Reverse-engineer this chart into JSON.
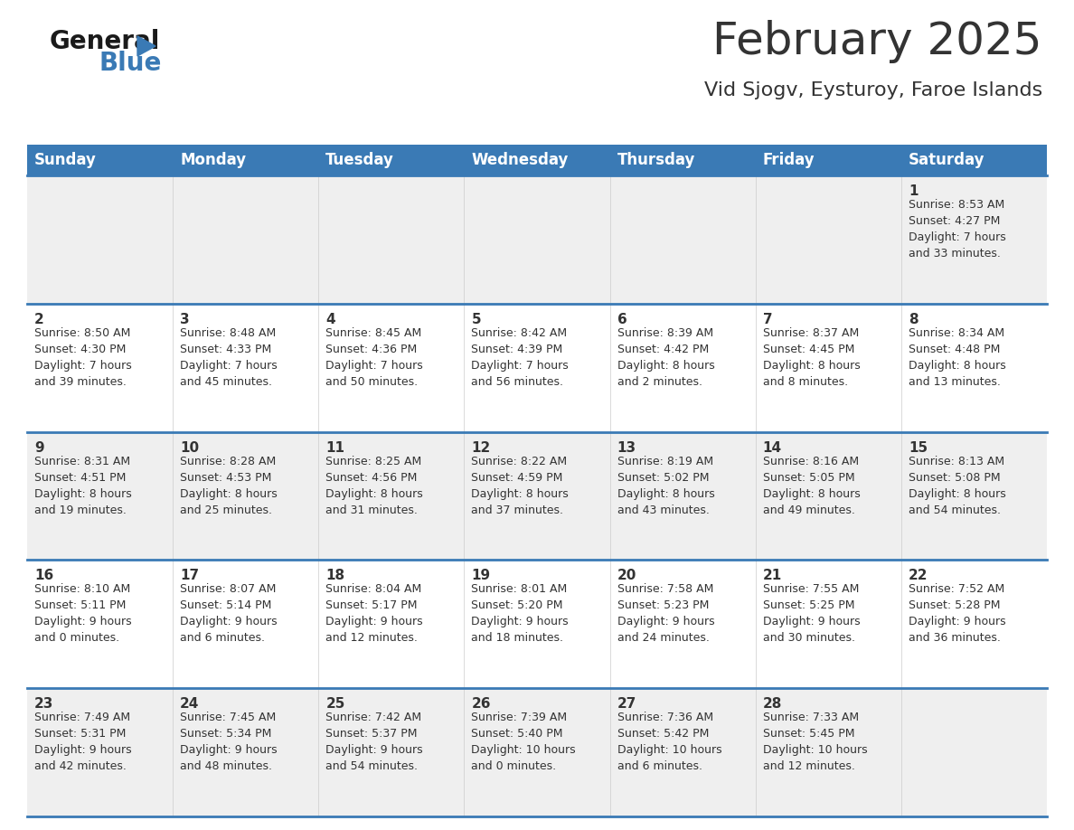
{
  "title": "February 2025",
  "subtitle": "Vid Sjogv, Eysturoy, Faroe Islands",
  "header_color": "#3a7ab5",
  "header_text_color": "#ffffff",
  "days_of_week": [
    "Sunday",
    "Monday",
    "Tuesday",
    "Wednesday",
    "Thursday",
    "Friday",
    "Saturday"
  ],
  "bg_color": "#ffffff",
  "cell_bg_even": "#efefef",
  "cell_bg_odd": "#ffffff",
  "border_color": "#3a7ab5",
  "text_color": "#333333",
  "calendar_data": [
    [
      {
        "day": null,
        "info": null
      },
      {
        "day": null,
        "info": null
      },
      {
        "day": null,
        "info": null
      },
      {
        "day": null,
        "info": null
      },
      {
        "day": null,
        "info": null
      },
      {
        "day": null,
        "info": null
      },
      {
        "day": 1,
        "info": "Sunrise: 8:53 AM\nSunset: 4:27 PM\nDaylight: 7 hours\nand 33 minutes."
      }
    ],
    [
      {
        "day": 2,
        "info": "Sunrise: 8:50 AM\nSunset: 4:30 PM\nDaylight: 7 hours\nand 39 minutes."
      },
      {
        "day": 3,
        "info": "Sunrise: 8:48 AM\nSunset: 4:33 PM\nDaylight: 7 hours\nand 45 minutes."
      },
      {
        "day": 4,
        "info": "Sunrise: 8:45 AM\nSunset: 4:36 PM\nDaylight: 7 hours\nand 50 minutes."
      },
      {
        "day": 5,
        "info": "Sunrise: 8:42 AM\nSunset: 4:39 PM\nDaylight: 7 hours\nand 56 minutes."
      },
      {
        "day": 6,
        "info": "Sunrise: 8:39 AM\nSunset: 4:42 PM\nDaylight: 8 hours\nand 2 minutes."
      },
      {
        "day": 7,
        "info": "Sunrise: 8:37 AM\nSunset: 4:45 PM\nDaylight: 8 hours\nand 8 minutes."
      },
      {
        "day": 8,
        "info": "Sunrise: 8:34 AM\nSunset: 4:48 PM\nDaylight: 8 hours\nand 13 minutes."
      }
    ],
    [
      {
        "day": 9,
        "info": "Sunrise: 8:31 AM\nSunset: 4:51 PM\nDaylight: 8 hours\nand 19 minutes."
      },
      {
        "day": 10,
        "info": "Sunrise: 8:28 AM\nSunset: 4:53 PM\nDaylight: 8 hours\nand 25 minutes."
      },
      {
        "day": 11,
        "info": "Sunrise: 8:25 AM\nSunset: 4:56 PM\nDaylight: 8 hours\nand 31 minutes."
      },
      {
        "day": 12,
        "info": "Sunrise: 8:22 AM\nSunset: 4:59 PM\nDaylight: 8 hours\nand 37 minutes."
      },
      {
        "day": 13,
        "info": "Sunrise: 8:19 AM\nSunset: 5:02 PM\nDaylight: 8 hours\nand 43 minutes."
      },
      {
        "day": 14,
        "info": "Sunrise: 8:16 AM\nSunset: 5:05 PM\nDaylight: 8 hours\nand 49 minutes."
      },
      {
        "day": 15,
        "info": "Sunrise: 8:13 AM\nSunset: 5:08 PM\nDaylight: 8 hours\nand 54 minutes."
      }
    ],
    [
      {
        "day": 16,
        "info": "Sunrise: 8:10 AM\nSunset: 5:11 PM\nDaylight: 9 hours\nand 0 minutes."
      },
      {
        "day": 17,
        "info": "Sunrise: 8:07 AM\nSunset: 5:14 PM\nDaylight: 9 hours\nand 6 minutes."
      },
      {
        "day": 18,
        "info": "Sunrise: 8:04 AM\nSunset: 5:17 PM\nDaylight: 9 hours\nand 12 minutes."
      },
      {
        "day": 19,
        "info": "Sunrise: 8:01 AM\nSunset: 5:20 PM\nDaylight: 9 hours\nand 18 minutes."
      },
      {
        "day": 20,
        "info": "Sunrise: 7:58 AM\nSunset: 5:23 PM\nDaylight: 9 hours\nand 24 minutes."
      },
      {
        "day": 21,
        "info": "Sunrise: 7:55 AM\nSunset: 5:25 PM\nDaylight: 9 hours\nand 30 minutes."
      },
      {
        "day": 22,
        "info": "Sunrise: 7:52 AM\nSunset: 5:28 PM\nDaylight: 9 hours\nand 36 minutes."
      }
    ],
    [
      {
        "day": 23,
        "info": "Sunrise: 7:49 AM\nSunset: 5:31 PM\nDaylight: 9 hours\nand 42 minutes."
      },
      {
        "day": 24,
        "info": "Sunrise: 7:45 AM\nSunset: 5:34 PM\nDaylight: 9 hours\nand 48 minutes."
      },
      {
        "day": 25,
        "info": "Sunrise: 7:42 AM\nSunset: 5:37 PM\nDaylight: 9 hours\nand 54 minutes."
      },
      {
        "day": 26,
        "info": "Sunrise: 7:39 AM\nSunset: 5:40 PM\nDaylight: 10 hours\nand 0 minutes."
      },
      {
        "day": 27,
        "info": "Sunrise: 7:36 AM\nSunset: 5:42 PM\nDaylight: 10 hours\nand 6 minutes."
      },
      {
        "day": 28,
        "info": "Sunrise: 7:33 AM\nSunset: 5:45 PM\nDaylight: 10 hours\nand 12 minutes."
      },
      {
        "day": null,
        "info": null
      }
    ]
  ],
  "logo_text_general": "General",
  "logo_text_blue": "Blue",
  "logo_color_general": "#1a1a1a",
  "logo_color_blue": "#3a7ab5",
  "logo_triangle_color": "#3a7ab5",
  "title_fontsize": 36,
  "subtitle_fontsize": 16,
  "dow_fontsize": 12,
  "day_num_fontsize": 11,
  "info_fontsize": 9
}
